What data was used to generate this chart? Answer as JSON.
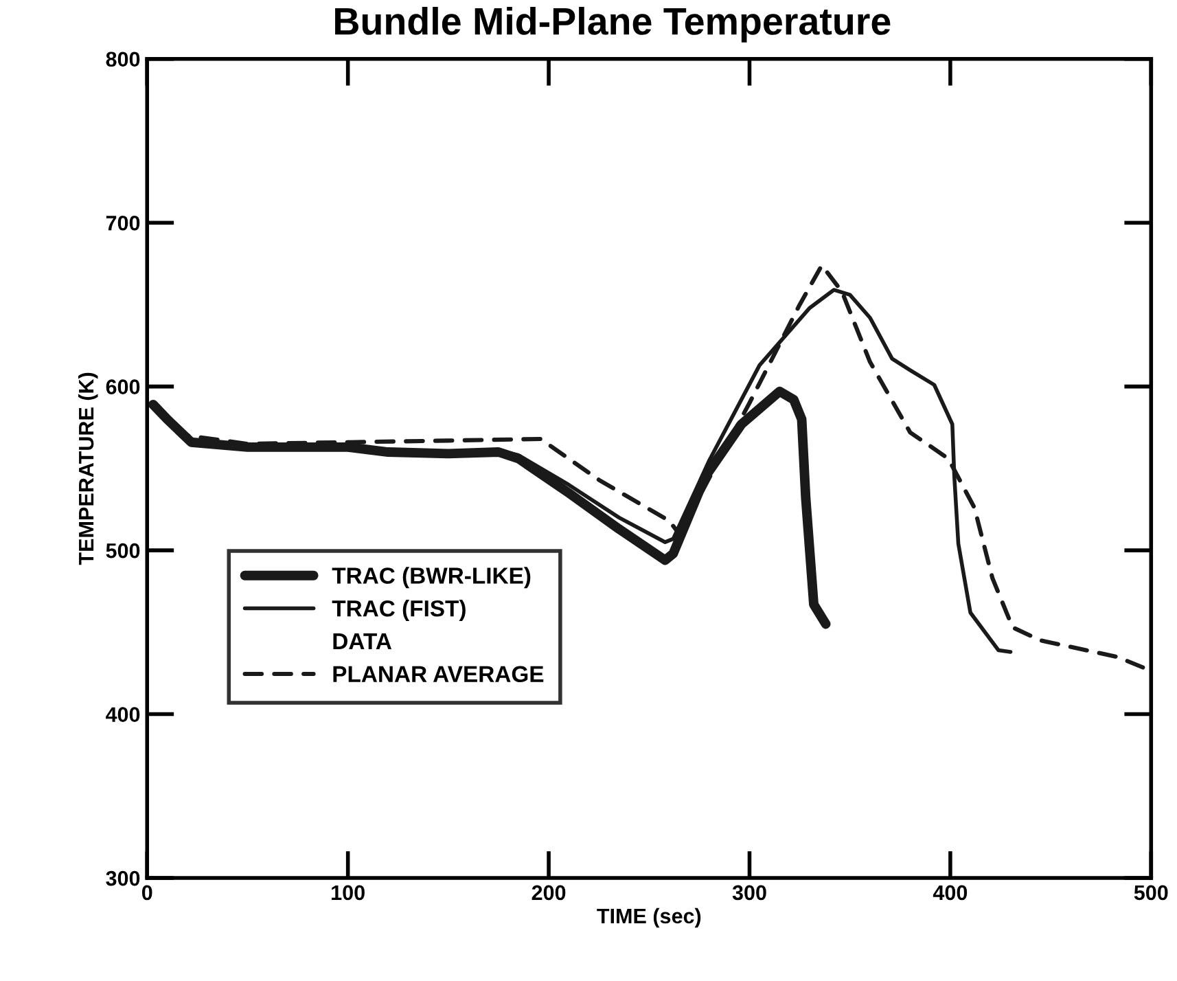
{
  "chart_data": {
    "type": "line",
    "title": "Bundle Mid-Plane Temperature",
    "xlabel": "TIME (sec)",
    "ylabel": "TEMPERATURE (K)",
    "xlim": [
      0,
      500
    ],
    "ylim": [
      300,
      800
    ],
    "xticks": [
      0,
      100,
      200,
      300,
      400,
      500
    ],
    "yticks": [
      300,
      400,
      500,
      600,
      700,
      800
    ],
    "grid": false,
    "legend": "bottom left",
    "annotations": [
      "DATA"
    ],
    "series": [
      {
        "name": "TRAC (BWR-LIKE)",
        "color": "#1a1a1a",
        "line_style": "solid",
        "x": [
          3,
          10,
          22,
          50,
          100,
          120,
          150,
          175,
          185,
          210,
          235,
          258,
          262,
          278,
          296,
          315,
          322,
          326,
          328,
          332,
          338
        ],
        "values": [
          589,
          580,
          566,
          563,
          563,
          560,
          559,
          560,
          556,
          535,
          513,
          494,
          498,
          545,
          577,
          597,
          592,
          580,
          532,
          467,
          455
        ]
      },
      {
        "name": "TRAC (FIST)",
        "color": "#1a1a1a",
        "line_style": "solid",
        "x": [
          3,
          10,
          22,
          50,
          100,
          120,
          150,
          175,
          185,
          210,
          235,
          258,
          262,
          280,
          305,
          330,
          342,
          350,
          360,
          371,
          380,
          392,
          401,
          402,
          404,
          410,
          424,
          430
        ],
        "values": [
          589,
          580,
          566,
          563,
          563,
          561,
          560,
          561,
          558,
          540,
          520,
          505,
          507,
          555,
          613,
          648,
          659,
          656,
          642,
          617,
          610,
          601,
          577,
          545,
          504,
          462,
          439,
          438
        ]
      },
      {
        "name": "PLANAR AVERAGE",
        "color": "#1a1a1a",
        "line_style": "dashed",
        "x": [
          3,
          20,
          50,
          100,
          150,
          196,
          225,
          260,
          265,
          300,
          325,
          336,
          346,
          360,
          380,
          399,
          412,
          421,
          431,
          445,
          483,
          497
        ],
        "values": [
          588,
          570,
          565,
          566,
          567,
          568,
          543,
          518,
          510,
          590,
          650,
          674,
          658,
          615,
          572,
          556,
          526,
          483,
          453,
          445,
          435,
          428
        ]
      }
    ]
  }
}
